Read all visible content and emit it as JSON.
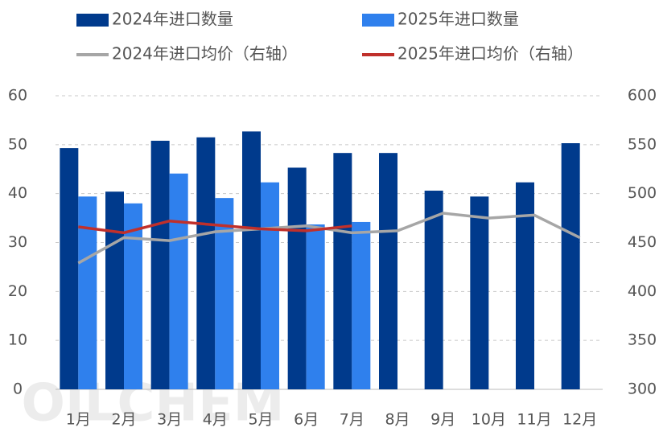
{
  "chart_data": {
    "type": "bar_line",
    "watermark": "OILCHEM",
    "categories": [
      "1月",
      "2月",
      "3月",
      "4月",
      "5月",
      "6月",
      "7月",
      "8月",
      "9月",
      "10月",
      "11月",
      "12月"
    ],
    "series": [
      {
        "name": "2024年进口数量",
        "type": "bar",
        "color": "#003a8c",
        "values": [
          49.3,
          40.4,
          50.8,
          51.5,
          52.7,
          45.3,
          48.3,
          48.3,
          40.6,
          39.4,
          42.3,
          50.3
        ]
      },
      {
        "name": "2025年进口数量",
        "type": "bar",
        "color": "#2f80ed",
        "values": [
          39.4,
          38.0,
          44.1,
          39.1,
          42.3,
          33.7,
          34.2,
          null,
          null,
          null,
          null,
          null
        ]
      },
      {
        "name": "2024年进口均价（右轴）",
        "type": "line",
        "axis": "y2",
        "color": "#a6a6a6",
        "values": [
          429,
          455,
          452,
          461,
          464,
          467,
          460,
          462,
          480,
          475,
          478,
          455
        ]
      },
      {
        "name": "2025年进口均价（右轴）",
        "type": "line",
        "axis": "y2",
        "color": "#c0302b",
        "values": [
          466,
          460,
          472,
          468,
          464,
          462,
          467,
          null,
          null,
          null,
          null,
          null
        ]
      }
    ],
    "ylim": [
      0,
      60
    ],
    "yticks": [
      0,
      10,
      20,
      30,
      40,
      50,
      60
    ],
    "y2lim": [
      300,
      600
    ],
    "y2ticks": [
      300,
      350,
      400,
      450,
      500,
      550,
      600
    ],
    "grid": true
  }
}
